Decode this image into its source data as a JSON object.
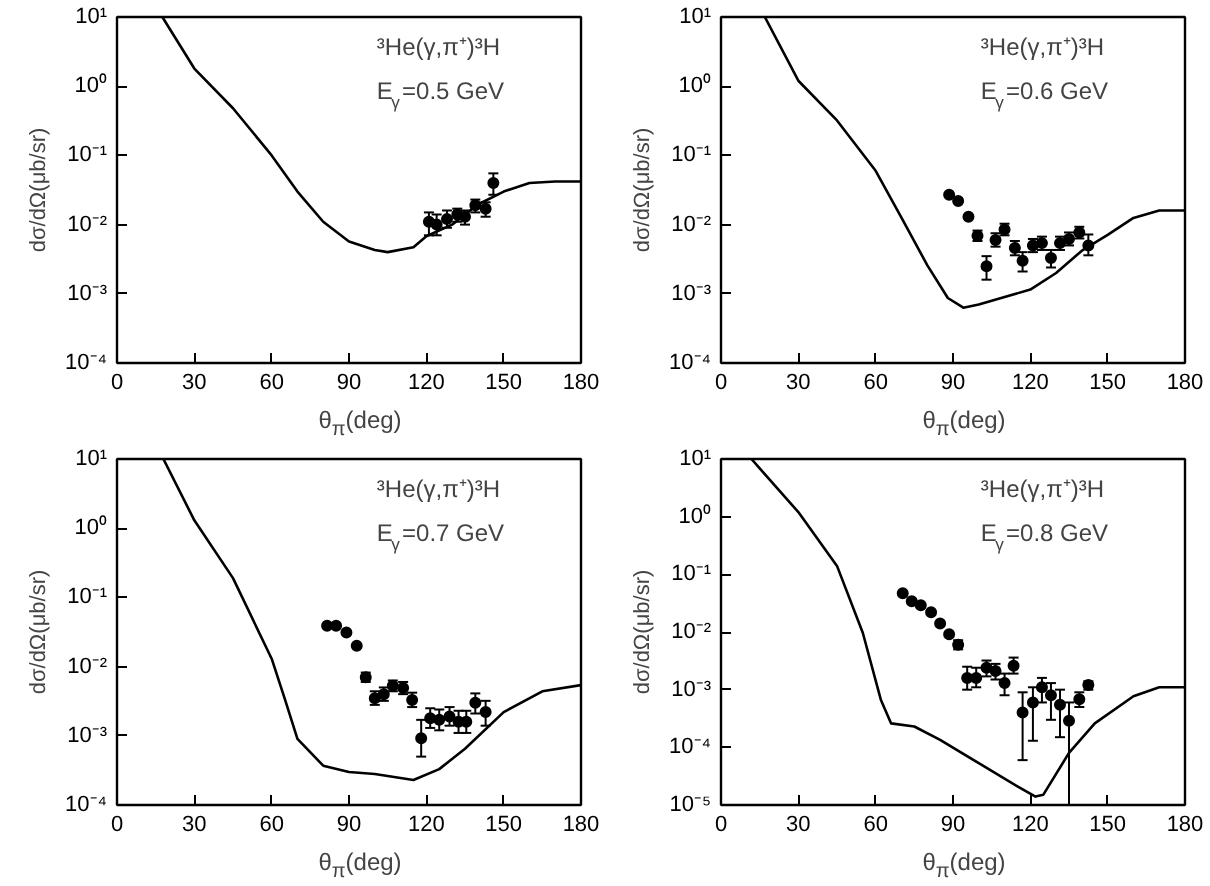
{
  "chart_data": [
    {
      "type": "scatter",
      "annotations": [
        "³He(γ,π⁺)³H",
        "E$_{γ}$=0.5  GeV"
      ],
      "xlabel": "θ$_{π}$(deg)",
      "ylabel": "dσ/dΩ(μb/sr)",
      "xlim": [
        0,
        180
      ],
      "ylim": [
        0.0001,
        10
      ],
      "xticks": [
        0,
        30,
        60,
        90,
        120,
        150,
        180
      ],
      "yticks": [
        {
          "value": 0.0001,
          "label": "10⁻⁴"
        },
        {
          "value": 0.001,
          "label": "10⁻³"
        },
        {
          "value": 0.01,
          "label": "10⁻²"
        },
        {
          "value": 0.1,
          "label": "10⁻¹"
        },
        {
          "value": 1,
          "label": "10⁰"
        },
        {
          "value": 10,
          "label": "10¹"
        }
      ],
      "log": "y",
      "grid": false,
      "series": [
        {
          "type": "line",
          "color": "#000000",
          "x": [
            17.6,
            30,
            45,
            60,
            70,
            80,
            90,
            100,
            105,
            115,
            120,
            130,
            140,
            150,
            160,
            170,
            180
          ],
          "values": [
            10,
            1.8,
            0.48,
            0.1,
            0.03,
            0.011,
            0.0057,
            0.0043,
            0.004,
            0.0047,
            0.0068,
            0.01,
            0.0195,
            0.03,
            0.04,
            0.042,
            0.042
          ]
        },
        {
          "type": "scatter",
          "marker": "circle",
          "color": "#000000",
          "x": [
            121,
            124,
            128,
            132,
            135,
            139,
            143,
            146
          ],
          "values": [
            0.011,
            0.01,
            0.012,
            0.014,
            0.013,
            0.019,
            0.017,
            0.04
          ],
          "errors": [
            [
              0.007,
              0.015
            ],
            [
              0.007,
              0.014
            ],
            [
              0.009,
              0.016
            ],
            [
              0.011,
              0.017
            ],
            [
              0.01,
              0.016
            ],
            [
              0.015,
              0.023
            ],
            [
              0.013,
              0.021
            ],
            [
              0.027,
              0.055
            ]
          ]
        }
      ]
    },
    {
      "type": "scatter",
      "annotations": [
        "³He(γ,π⁺)³H",
        "E$_{γ}$=0.6  GeV"
      ],
      "xlabel": "θ$_{π}$(deg)",
      "ylabel": "dσ/dΩ(μb/sr)",
      "xlim": [
        0,
        180
      ],
      "ylim": [
        0.0001,
        10
      ],
      "xticks": [
        0,
        30,
        60,
        90,
        120,
        150,
        180
      ],
      "yticks": [
        {
          "value": 0.0001,
          "label": "10⁻⁴"
        },
        {
          "value": 0.001,
          "label": "10⁻³"
        },
        {
          "value": 0.01,
          "label": "10⁻²"
        },
        {
          "value": 0.1,
          "label": "10⁻¹"
        },
        {
          "value": 1,
          "label": "10⁰"
        },
        {
          "value": 10,
          "label": "10¹"
        }
      ],
      "log": "y",
      "grid": false,
      "series": [
        {
          "type": "line",
          "color": "#000000",
          "x": [
            17,
            30,
            45,
            60,
            70,
            80,
            88,
            94,
            100,
            120,
            130,
            140,
            150,
            160,
            170,
            180
          ],
          "values": [
            10,
            1.2,
            0.32,
            0.06,
            0.0126,
            0.0026,
            0.00087,
            0.00063,
            0.0007,
            0.00115,
            0.002,
            0.0042,
            0.0071,
            0.0125,
            0.016,
            0.016
          ]
        },
        {
          "type": "scatter",
          "marker": "circle",
          "color": "#000000",
          "x": [
            88.5,
            92,
            96,
            99.5,
            103,
            106.5,
            110,
            114,
            117,
            121,
            124.5,
            128,
            131.5,
            135,
            139,
            142.5
          ],
          "values": [
            0.027,
            0.022,
            0.013,
            0.0069,
            0.0025,
            0.006,
            0.0085,
            0.0046,
            0.003,
            0.005,
            0.0054,
            0.0033,
            0.0054,
            0.0062,
            0.0077,
            0.005
          ],
          "errors": [
            null,
            null,
            null,
            [
              0.0058,
              0.0082
            ],
            [
              0.0016,
              0.0035
            ],
            [
              0.0048,
              0.0075
            ],
            [
              0.007,
              0.0103
            ],
            [
              0.0036,
              0.0058
            ],
            [
              0.0021,
              0.004
            ],
            [
              0.004,
              0.0062
            ],
            [
              0.0043,
              0.0067
            ],
            [
              0.0024,
              0.0043
            ],
            [
              0.0043,
              0.0067
            ],
            [
              0.005,
              0.0077
            ],
            [
              0.0063,
              0.0093
            ],
            [
              0.0036,
              0.0072
            ]
          ]
        }
      ]
    },
    {
      "type": "scatter",
      "annotations": [
        "³He(γ,π⁺)³H",
        "E$_{γ}$=0.7  GeV"
      ],
      "xlabel": "θ$_{π}$(deg)",
      "ylabel": "dσ/dΩ(μb/sr)",
      "xlim": [
        0,
        180
      ],
      "ylim": [
        0.0001,
        10
      ],
      "xticks": [
        0,
        30,
        60,
        90,
        120,
        150,
        180
      ],
      "yticks": [
        {
          "value": 0.0001,
          "label": "10⁻⁴"
        },
        {
          "value": 0.001,
          "label": "10⁻³"
        },
        {
          "value": 0.01,
          "label": "10⁻²"
        },
        {
          "value": 0.1,
          "label": "10⁻¹"
        },
        {
          "value": 1,
          "label": "10⁰"
        },
        {
          "value": 10,
          "label": "10¹"
        }
      ],
      "log": "y",
      "grid": false,
      "series": [
        {
          "type": "line",
          "color": "#000000",
          "x": [
            18,
            30,
            45,
            60,
            65,
            70,
            80,
            90,
            100,
            115,
            125,
            135,
            150,
            165,
            180
          ],
          "values": [
            10,
            1.3,
            0.19,
            0.013,
            0.0035,
            0.0009,
            0.00037,
            0.0003,
            0.00028,
            0.00023,
            0.00033,
            0.00065,
            0.0022,
            0.0044,
            0.0054
          ]
        },
        {
          "type": "scatter",
          "marker": "circle",
          "color": "#000000",
          "x": [
            81.5,
            85,
            89,
            93,
            96.5,
            100,
            103.5,
            107,
            111,
            114.5,
            118,
            121.5,
            125,
            129,
            132.5,
            135.5,
            139,
            143
          ],
          "values": [
            0.039,
            0.039,
            0.031,
            0.02,
            0.007,
            0.0035,
            0.004,
            0.0053,
            0.0049,
            0.0033,
            0.00092,
            0.0018,
            0.0017,
            0.0019,
            0.0016,
            0.0016,
            0.003,
            0.0022
          ],
          "errors": [
            null,
            null,
            null,
            null,
            [
              0.006,
              0.0082
            ],
            [
              0.0028,
              0.0044
            ],
            [
              0.0032,
              0.005
            ],
            [
              0.0044,
              0.0063
            ],
            [
              0.004,
              0.006
            ],
            [
              0.0026,
              0.0042
            ],
            [
              0.0005,
              0.0017
            ],
            [
              0.0013,
              0.0025
            ],
            [
              0.0012,
              0.0024
            ],
            [
              0.0014,
              0.0026
            ],
            [
              0.0011,
              0.0023
            ],
            [
              0.0011,
              0.0023
            ],
            [
              0.0021,
              0.0041
            ],
            [
              0.0014,
              0.0032
            ]
          ]
        }
      ]
    },
    {
      "type": "scatter",
      "annotations": [
        "³He(γ,π⁺)³H",
        "E$_{γ}$=0.8  GeV"
      ],
      "xlabel": "θ$_{π}$(deg)",
      "ylabel": "dσ/dΩ(μb/sr)",
      "xlim": [
        0,
        180
      ],
      "ylim": [
        1e-05,
        10
      ],
      "xticks": [
        0,
        30,
        60,
        90,
        120,
        150,
        180
      ],
      "yticks": [
        {
          "value": 1e-05,
          "label": "10⁻⁵"
        },
        {
          "value": 0.0001,
          "label": "10⁻⁴"
        },
        {
          "value": 0.001,
          "label": "10⁻³"
        },
        {
          "value": 0.01,
          "label": "10⁻²"
        },
        {
          "value": 0.1,
          "label": "10⁻¹"
        },
        {
          "value": 1,
          "label": "10⁰"
        },
        {
          "value": 10,
          "label": "10¹"
        }
      ],
      "log": "y",
      "grid": false,
      "series": [
        {
          "type": "line",
          "color": "#000000",
          "x": [
            11.8,
            30,
            45,
            55,
            62,
            66,
            75,
            85,
            100,
            115,
            122,
            125,
            135,
            145,
            160,
            170,
            180
          ],
          "values": [
            10,
            1.2,
            0.14,
            0.0097,
            0.00067,
            0.00026,
            0.00023,
            0.000135,
            5.3e-05,
            2.1e-05,
            1.4e-05,
            1.5e-05,
            8e-05,
            0.00026,
            0.00077,
            0.0011,
            0.0011
          ]
        },
        {
          "type": "scatter",
          "marker": "circle",
          "color": "#000000",
          "x": [
            70.5,
            74,
            77.5,
            81.5,
            85,
            88.5,
            92,
            95.5,
            99,
            103,
            106.5,
            110,
            113.5,
            117,
            121,
            124.5,
            128,
            131.5,
            135,
            139,
            142.5
          ],
          "values": [
            0.047,
            0.034,
            0.029,
            0.022,
            0.014,
            0.0091,
            0.006,
            0.0016,
            0.0016,
            0.0024,
            0.0021,
            0.0013,
            0.0026,
            0.0004,
            0.0006,
            0.0011,
            0.0008,
            0.00055,
            0.00029,
            0.00068,
            0.0012
          ],
          "errors": [
            null,
            null,
            null,
            null,
            null,
            null,
            [
              0.005,
              0.0072
            ],
            [
              0.001,
              0.0025
            ],
            [
              0.0011,
              0.0024
            ],
            [
              0.0017,
              0.0032
            ],
            [
              0.0015,
              0.0028
            ],
            [
              0.0008,
              0.0019
            ],
            [
              0.0019,
              0.0036
            ],
            [
              6e-05,
              0.0009
            ],
            [
              0.00013,
              0.0011
            ],
            [
              0.0006,
              0.0016
            ],
            [
              0.0003,
              0.0013
            ],
            [
              0.00015,
              0.001
            ],
            [
              1e-05,
              0.0006
            ],
            [
              0.0005,
              0.0009
            ],
            [
              0.001,
              0.0014
            ]
          ]
        }
      ]
    }
  ]
}
